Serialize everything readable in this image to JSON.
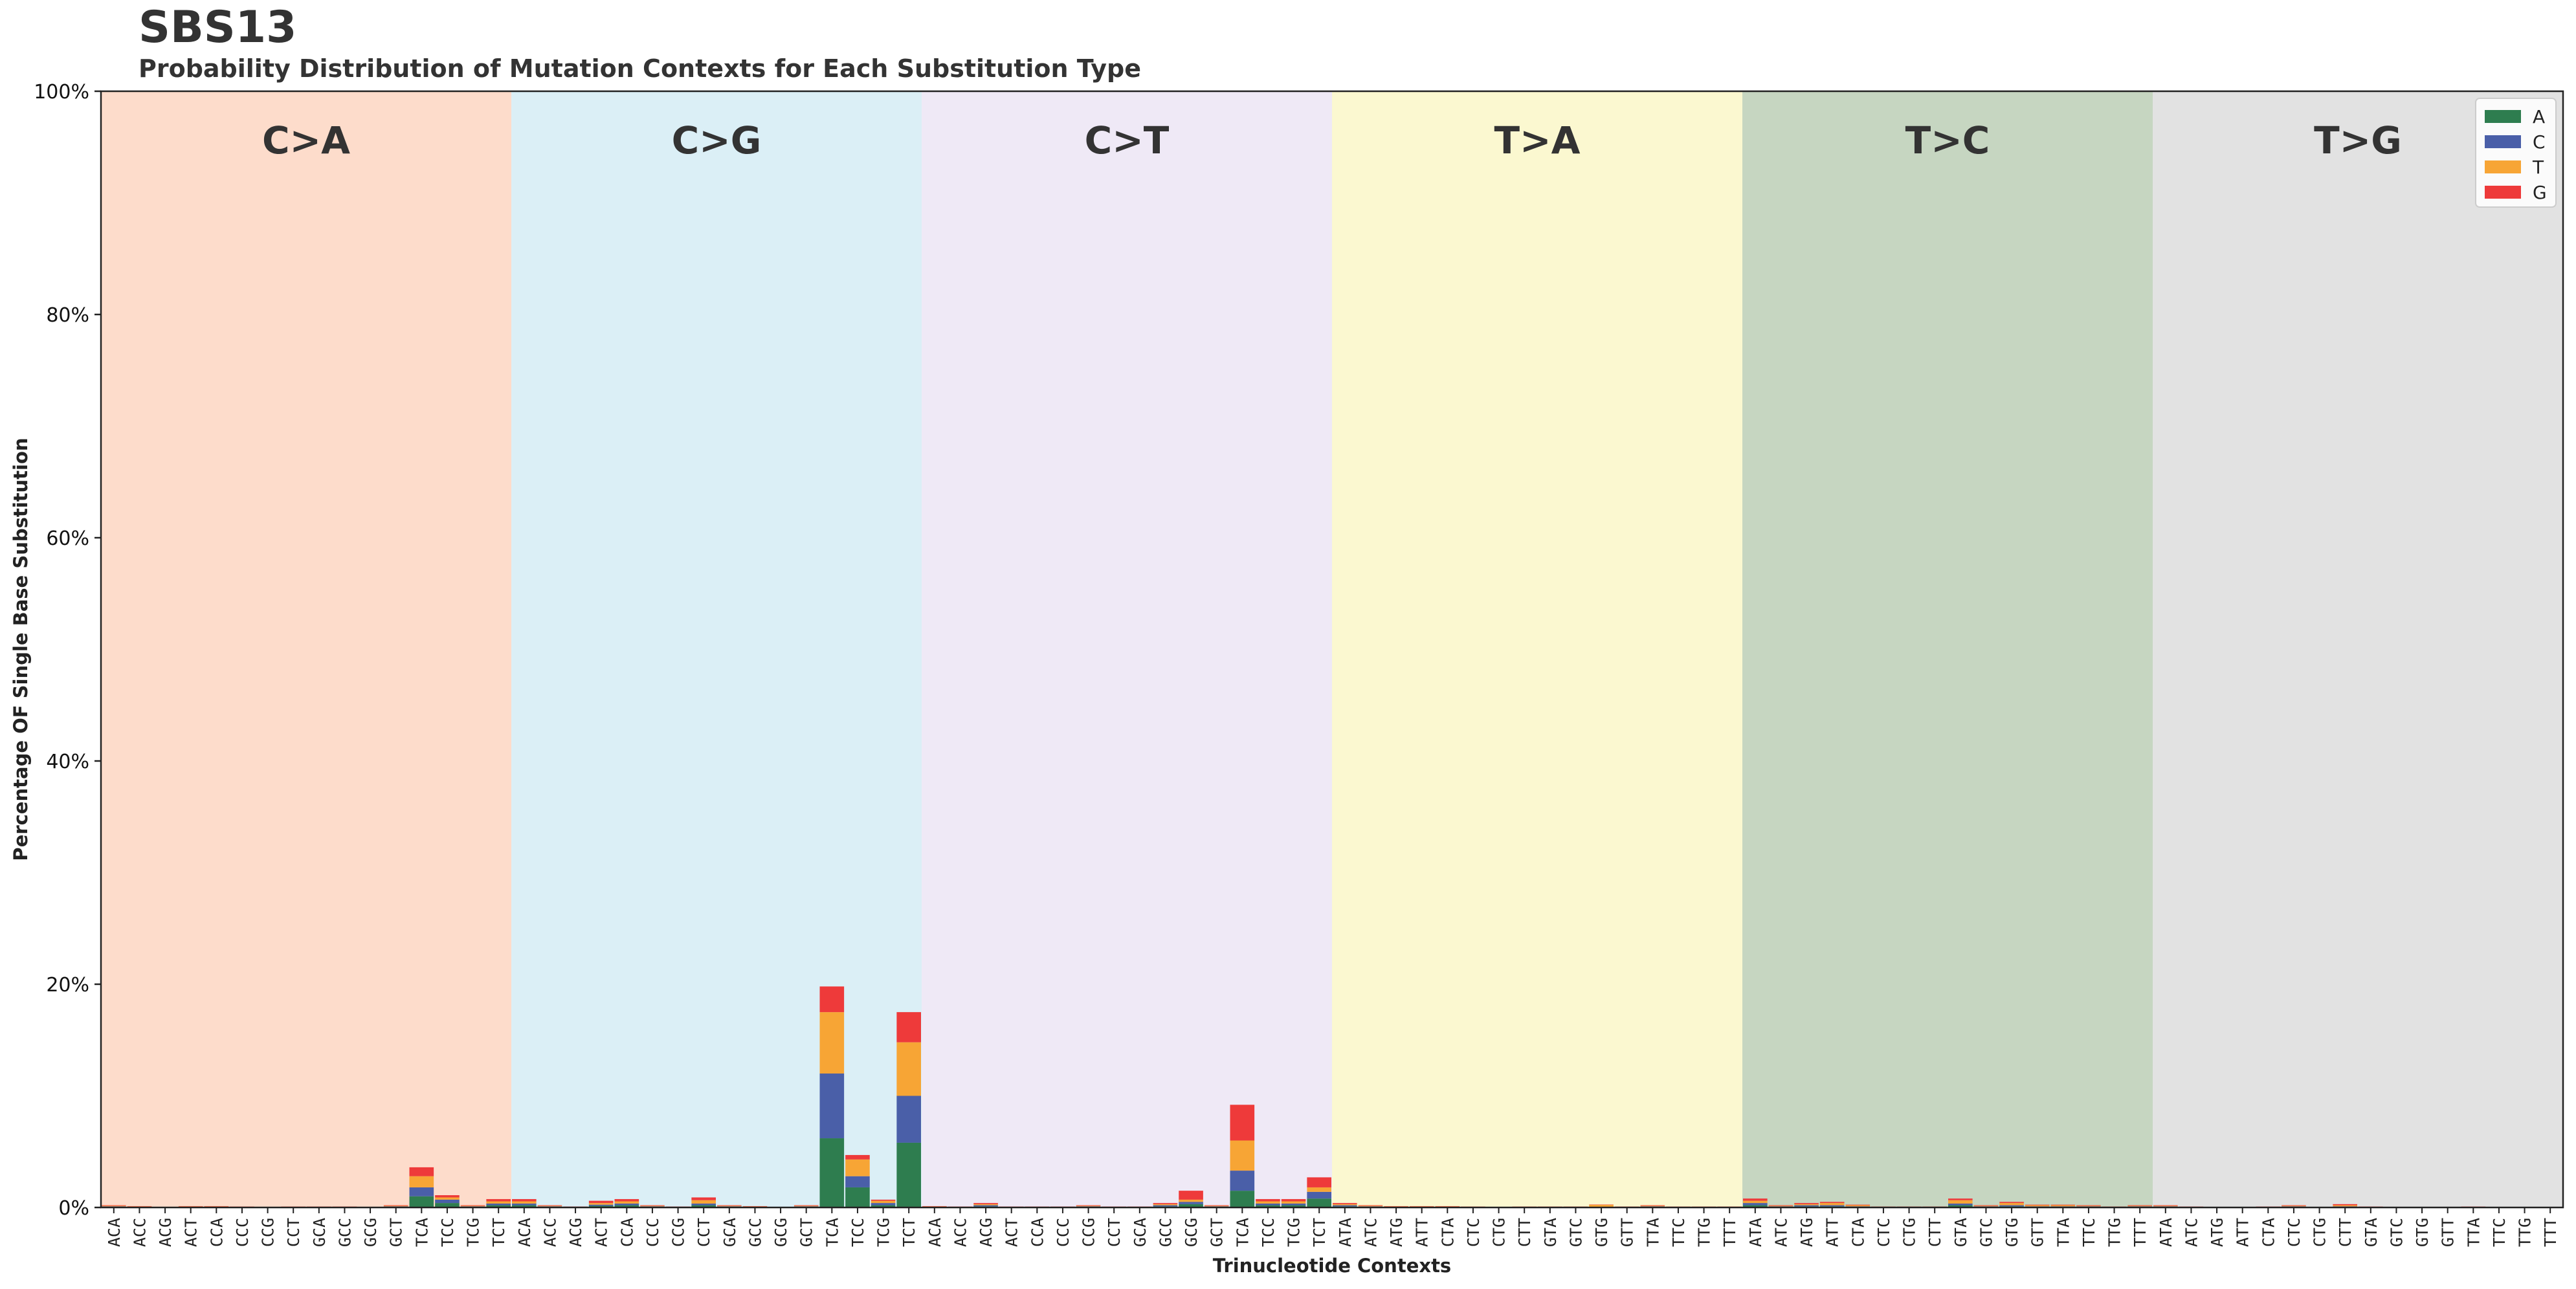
{
  "chart_data": {
    "type": "bar",
    "stacked": true,
    "title": "SBS13",
    "subtitle": "Probability Distribution of Mutation Contexts for Each Substitution Type",
    "xlabel": "Trinucleotide Contexts",
    "ylabel": "Percentage OF Single Base Substitution",
    "ylim": [
      0,
      100
    ],
    "yticks": [
      "0%",
      "20%",
      "40%",
      "60%",
      "80%",
      "100%"
    ],
    "grid": false,
    "legend_position": "top-right",
    "legend": [
      {
        "name": "A",
        "color": "#2e7d4f"
      },
      {
        "name": "C",
        "color": "#4a5fa8"
      },
      {
        "name": "T",
        "color": "#f7a535"
      },
      {
        "name": "G",
        "color": "#ee3a3a"
      }
    ],
    "groups": [
      {
        "label": "C>A",
        "color": "#fddccb",
        "contexts": [
          "ACA",
          "ACC",
          "ACG",
          "ACT",
          "CCA",
          "CCC",
          "CCG",
          "CCT",
          "GCA",
          "GCC",
          "GCG",
          "GCT",
          "TCA",
          "TCC",
          "TCG",
          "TCT"
        ]
      },
      {
        "label": "C>G",
        "color": "#dbeff6",
        "contexts": [
          "ACA",
          "ACC",
          "ACG",
          "ACT",
          "CCA",
          "CCC",
          "CCG",
          "CCT",
          "GCA",
          "GCC",
          "GCG",
          "GCT",
          "TCA",
          "TCC",
          "TCG",
          "TCT"
        ]
      },
      {
        "label": "C>T",
        "color": "#efe9f6",
        "contexts": [
          "ACA",
          "ACC",
          "ACG",
          "ACT",
          "CCA",
          "CCC",
          "CCG",
          "CCT",
          "GCA",
          "GCC",
          "GCG",
          "GCT",
          "TCA",
          "TCC",
          "TCG",
          "TCT"
        ]
      },
      {
        "label": "T>A",
        "color": "#fbf8d0",
        "contexts": [
          "ATA",
          "ATC",
          "ATG",
          "ATT",
          "CTA",
          "CTC",
          "CTG",
          "CTT",
          "GTA",
          "GTC",
          "GTG",
          "GTT",
          "TTA",
          "TTC",
          "TTG",
          "TTT"
        ]
      },
      {
        "label": "T>C",
        "color": "#c6d6c1",
        "contexts": [
          "ATA",
          "ATC",
          "ATG",
          "ATT",
          "CTA",
          "CTC",
          "CTG",
          "CTT",
          "GTA",
          "GTC",
          "GTG",
          "GTT",
          "TTA",
          "TTC",
          "TTG",
          "TTT"
        ]
      },
      {
        "label": "T>G",
        "color": "#e2e2e2",
        "contexts": [
          "ATA",
          "ATC",
          "ATG",
          "ATT",
          "CTA",
          "CTC",
          "CTG",
          "CTT",
          "GTA",
          "GTC",
          "GTG",
          "GTT",
          "TTA",
          "TTC",
          "TTG",
          "TTT"
        ]
      }
    ],
    "series": [
      {
        "name": "A",
        "values": [
          0.05,
          0.03,
          0.01,
          0.03,
          0.03,
          0.02,
          0.01,
          0.02,
          0.02,
          0.02,
          0.01,
          0.05,
          1.0,
          0.4,
          0.05,
          0.2,
          0.2,
          0.05,
          0.02,
          0.15,
          0.2,
          0.05,
          0.02,
          0.2,
          0.05,
          0.03,
          0.01,
          0.05,
          6.2,
          1.8,
          0.2,
          5.8,
          0.03,
          0.02,
          0.1,
          0.02,
          0.02,
          0.02,
          0.05,
          0.02,
          0.02,
          0.1,
          0.3,
          0.05,
          1.5,
          0.2,
          0.2,
          0.8,
          0.1,
          0.05,
          0.03,
          0.03,
          0.03,
          0.02,
          0.01,
          0.02,
          0.02,
          0.02,
          0.02,
          0.02,
          0.05,
          0.02,
          0.02,
          0.02,
          0.2,
          0.05,
          0.1,
          0.1,
          0.05,
          0.02,
          0.02,
          0.02,
          0.2,
          0.05,
          0.1,
          0.05,
          0.05,
          0.05,
          0.02,
          0.05,
          0.05,
          0.02,
          0.01,
          0.01,
          0.02,
          0.05,
          0.01,
          0.05,
          0.02,
          0.01,
          0.01,
          0.01,
          0.02,
          0.01,
          0.01,
          0.01
        ]
      },
      {
        "name": "C",
        "values": [
          0.05,
          0.03,
          0.01,
          0.03,
          0.03,
          0.02,
          0.01,
          0.02,
          0.02,
          0.02,
          0.01,
          0.05,
          0.8,
          0.3,
          0.05,
          0.15,
          0.15,
          0.05,
          0.02,
          0.1,
          0.15,
          0.05,
          0.02,
          0.15,
          0.05,
          0.03,
          0.01,
          0.05,
          5.8,
          1.0,
          0.2,
          4.2,
          0.03,
          0.02,
          0.1,
          0.02,
          0.02,
          0.02,
          0.05,
          0.02,
          0.02,
          0.1,
          0.2,
          0.05,
          1.8,
          0.15,
          0.15,
          0.6,
          0.1,
          0.05,
          0.03,
          0.03,
          0.03,
          0.02,
          0.01,
          0.02,
          0.02,
          0.02,
          0.02,
          0.02,
          0.05,
          0.02,
          0.02,
          0.02,
          0.2,
          0.05,
          0.1,
          0.1,
          0.05,
          0.02,
          0.02,
          0.02,
          0.15,
          0.05,
          0.1,
          0.05,
          0.05,
          0.05,
          0.02,
          0.05,
          0.05,
          0.02,
          0.01,
          0.01,
          0.02,
          0.05,
          0.01,
          0.05,
          0.02,
          0.01,
          0.01,
          0.01,
          0.02,
          0.01,
          0.01,
          0.01
        ]
      },
      {
        "name": "T",
        "values": [
          0.05,
          0.03,
          0.01,
          0.03,
          0.03,
          0.02,
          0.01,
          0.02,
          0.02,
          0.02,
          0.01,
          0.05,
          1.0,
          0.2,
          0.05,
          0.2,
          0.2,
          0.05,
          0.02,
          0.15,
          0.2,
          0.05,
          0.02,
          0.3,
          0.05,
          0.03,
          0.01,
          0.05,
          5.5,
          1.5,
          0.2,
          4.8,
          0.03,
          0.02,
          0.1,
          0.02,
          0.02,
          0.02,
          0.05,
          0.02,
          0.02,
          0.1,
          0.2,
          0.05,
          2.7,
          0.2,
          0.2,
          0.4,
          0.1,
          0.05,
          0.03,
          0.03,
          0.03,
          0.02,
          0.01,
          0.02,
          0.02,
          0.02,
          0.2,
          0.02,
          0.05,
          0.02,
          0.02,
          0.02,
          0.2,
          0.05,
          0.1,
          0.2,
          0.1,
          0.02,
          0.02,
          0.02,
          0.3,
          0.05,
          0.2,
          0.1,
          0.1,
          0.05,
          0.02,
          0.05,
          0.05,
          0.02,
          0.01,
          0.01,
          0.02,
          0.05,
          0.01,
          0.1,
          0.02,
          0.01,
          0.01,
          0.01,
          0.02,
          0.01,
          0.01,
          0.01
        ]
      },
      {
        "name": "G",
        "values": [
          0.05,
          0.03,
          0.01,
          0.03,
          0.03,
          0.02,
          0.01,
          0.02,
          0.02,
          0.02,
          0.01,
          0.05,
          0.8,
          0.2,
          0.05,
          0.2,
          0.2,
          0.05,
          0.02,
          0.2,
          0.2,
          0.05,
          0.02,
          0.25,
          0.05,
          0.03,
          0.01,
          0.05,
          2.3,
          0.4,
          0.1,
          2.7,
          0.03,
          0.02,
          0.1,
          0.02,
          0.02,
          0.02,
          0.05,
          0.02,
          0.02,
          0.1,
          0.8,
          0.05,
          3.2,
          0.2,
          0.2,
          0.9,
          0.1,
          0.05,
          0.03,
          0.03,
          0.03,
          0.02,
          0.01,
          0.02,
          0.02,
          0.02,
          0.02,
          0.02,
          0.05,
          0.02,
          0.02,
          0.02,
          0.2,
          0.05,
          0.1,
          0.1,
          0.05,
          0.02,
          0.02,
          0.02,
          0.15,
          0.05,
          0.1,
          0.05,
          0.05,
          0.05,
          0.02,
          0.05,
          0.05,
          0.02,
          0.01,
          0.01,
          0.02,
          0.05,
          0.01,
          0.1,
          0.02,
          0.01,
          0.01,
          0.01,
          0.02,
          0.01,
          0.01,
          0.01
        ]
      }
    ]
  }
}
